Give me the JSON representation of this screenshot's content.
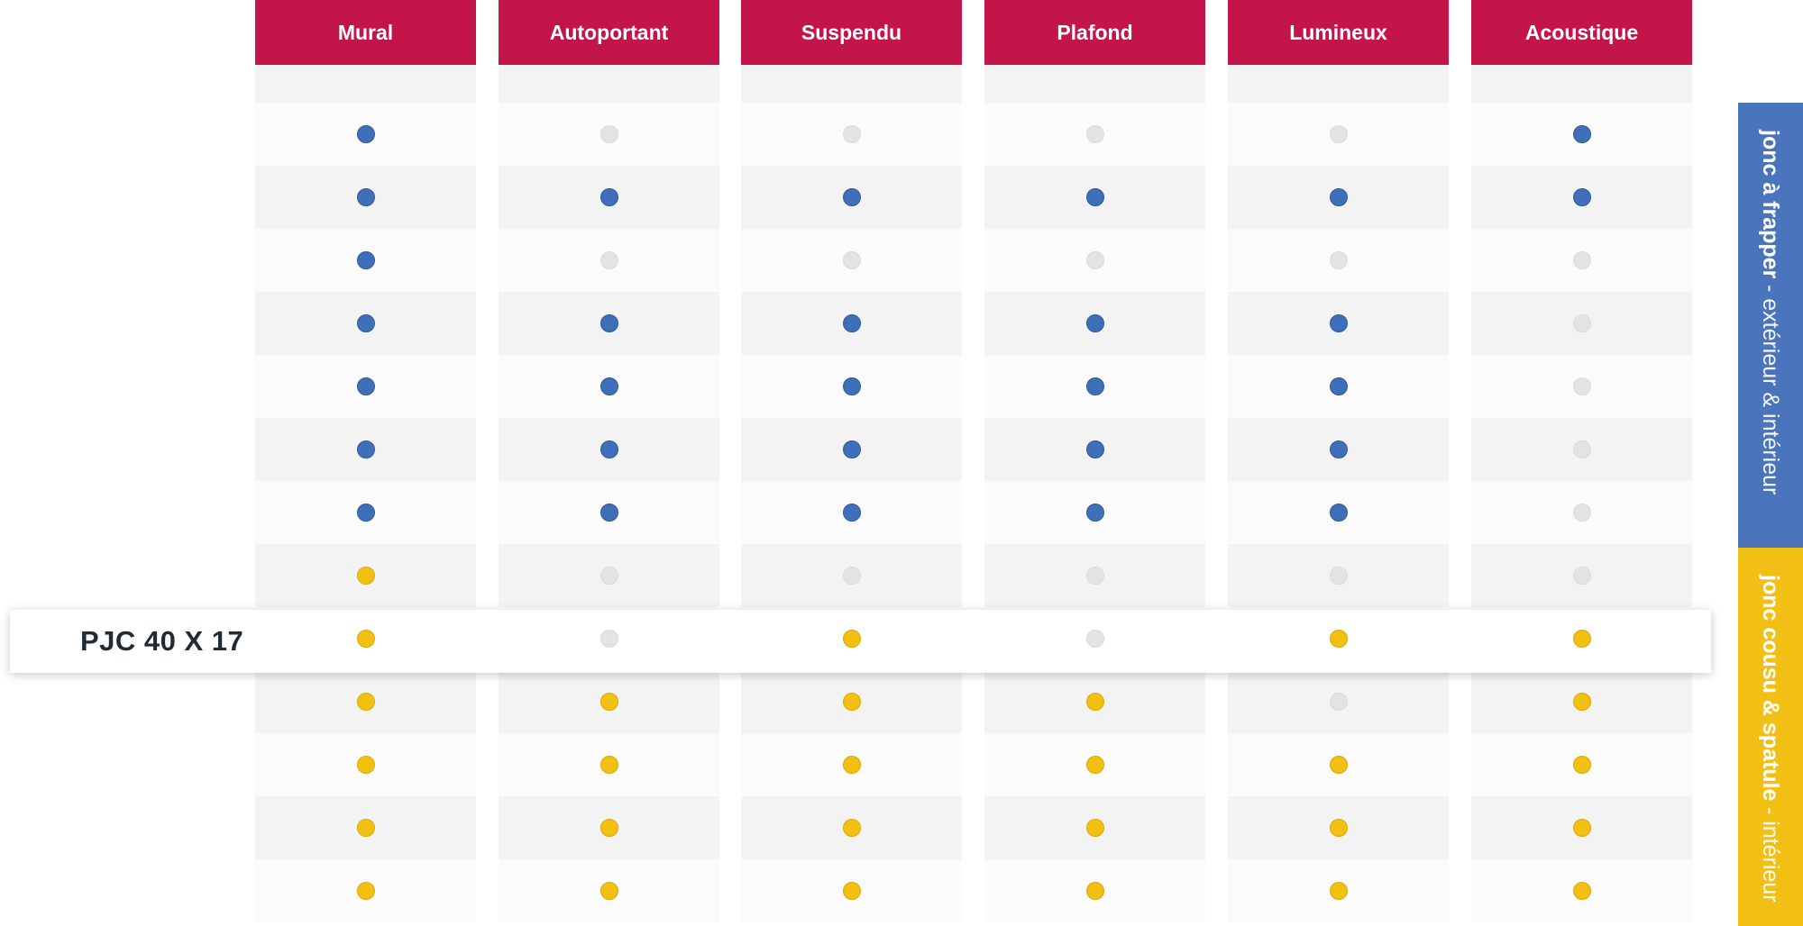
{
  "header": {
    "columns": [
      "Mural",
      "Autoportant",
      "Suspendu",
      "Plafond",
      "Lumineux",
      "Acoustique"
    ]
  },
  "colors": {
    "header_bg": "#c4154a",
    "blue": "#3e6fb8",
    "yellow": "#f2c011",
    "gray": "#e3e3e3",
    "band_blue": "#4a74bb",
    "band_yellow": "#f2c014"
  },
  "highlighted_row": {
    "label": "PJC 40 X 17"
  },
  "matrix": [
    [
      "blue",
      "gray",
      "gray",
      "gray",
      "gray",
      "blue"
    ],
    [
      "blue",
      "blue",
      "blue",
      "blue",
      "blue",
      "blue"
    ],
    [
      "blue",
      "gray",
      "gray",
      "gray",
      "gray",
      "gray"
    ],
    [
      "blue",
      "blue",
      "blue",
      "blue",
      "blue",
      "gray"
    ],
    [
      "blue",
      "blue",
      "blue",
      "blue",
      "blue",
      "gray"
    ],
    [
      "blue",
      "blue",
      "blue",
      "blue",
      "blue",
      "gray"
    ],
    [
      "blue",
      "blue",
      "blue",
      "blue",
      "blue",
      "gray"
    ],
    [
      "yellow",
      "gray",
      "gray",
      "gray",
      "gray",
      "gray"
    ],
    [
      "yellow",
      "gray",
      "yellow",
      "gray",
      "yellow",
      "yellow"
    ],
    [
      "yellow",
      "yellow",
      "yellow",
      "yellow",
      "gray",
      "yellow"
    ],
    [
      "yellow",
      "yellow",
      "yellow",
      "yellow",
      "yellow",
      "yellow"
    ],
    [
      "yellow",
      "yellow",
      "yellow",
      "yellow",
      "yellow",
      "yellow"
    ],
    [
      "yellow",
      "yellow",
      "yellow",
      "yellow",
      "yellow",
      "yellow"
    ]
  ],
  "side_bands": [
    {
      "bold": "jonc à frapper",
      "light": " - extérieur & intérieur"
    },
    {
      "bold": "jonc cousu & spatule",
      "light": " - intérieur"
    }
  ]
}
